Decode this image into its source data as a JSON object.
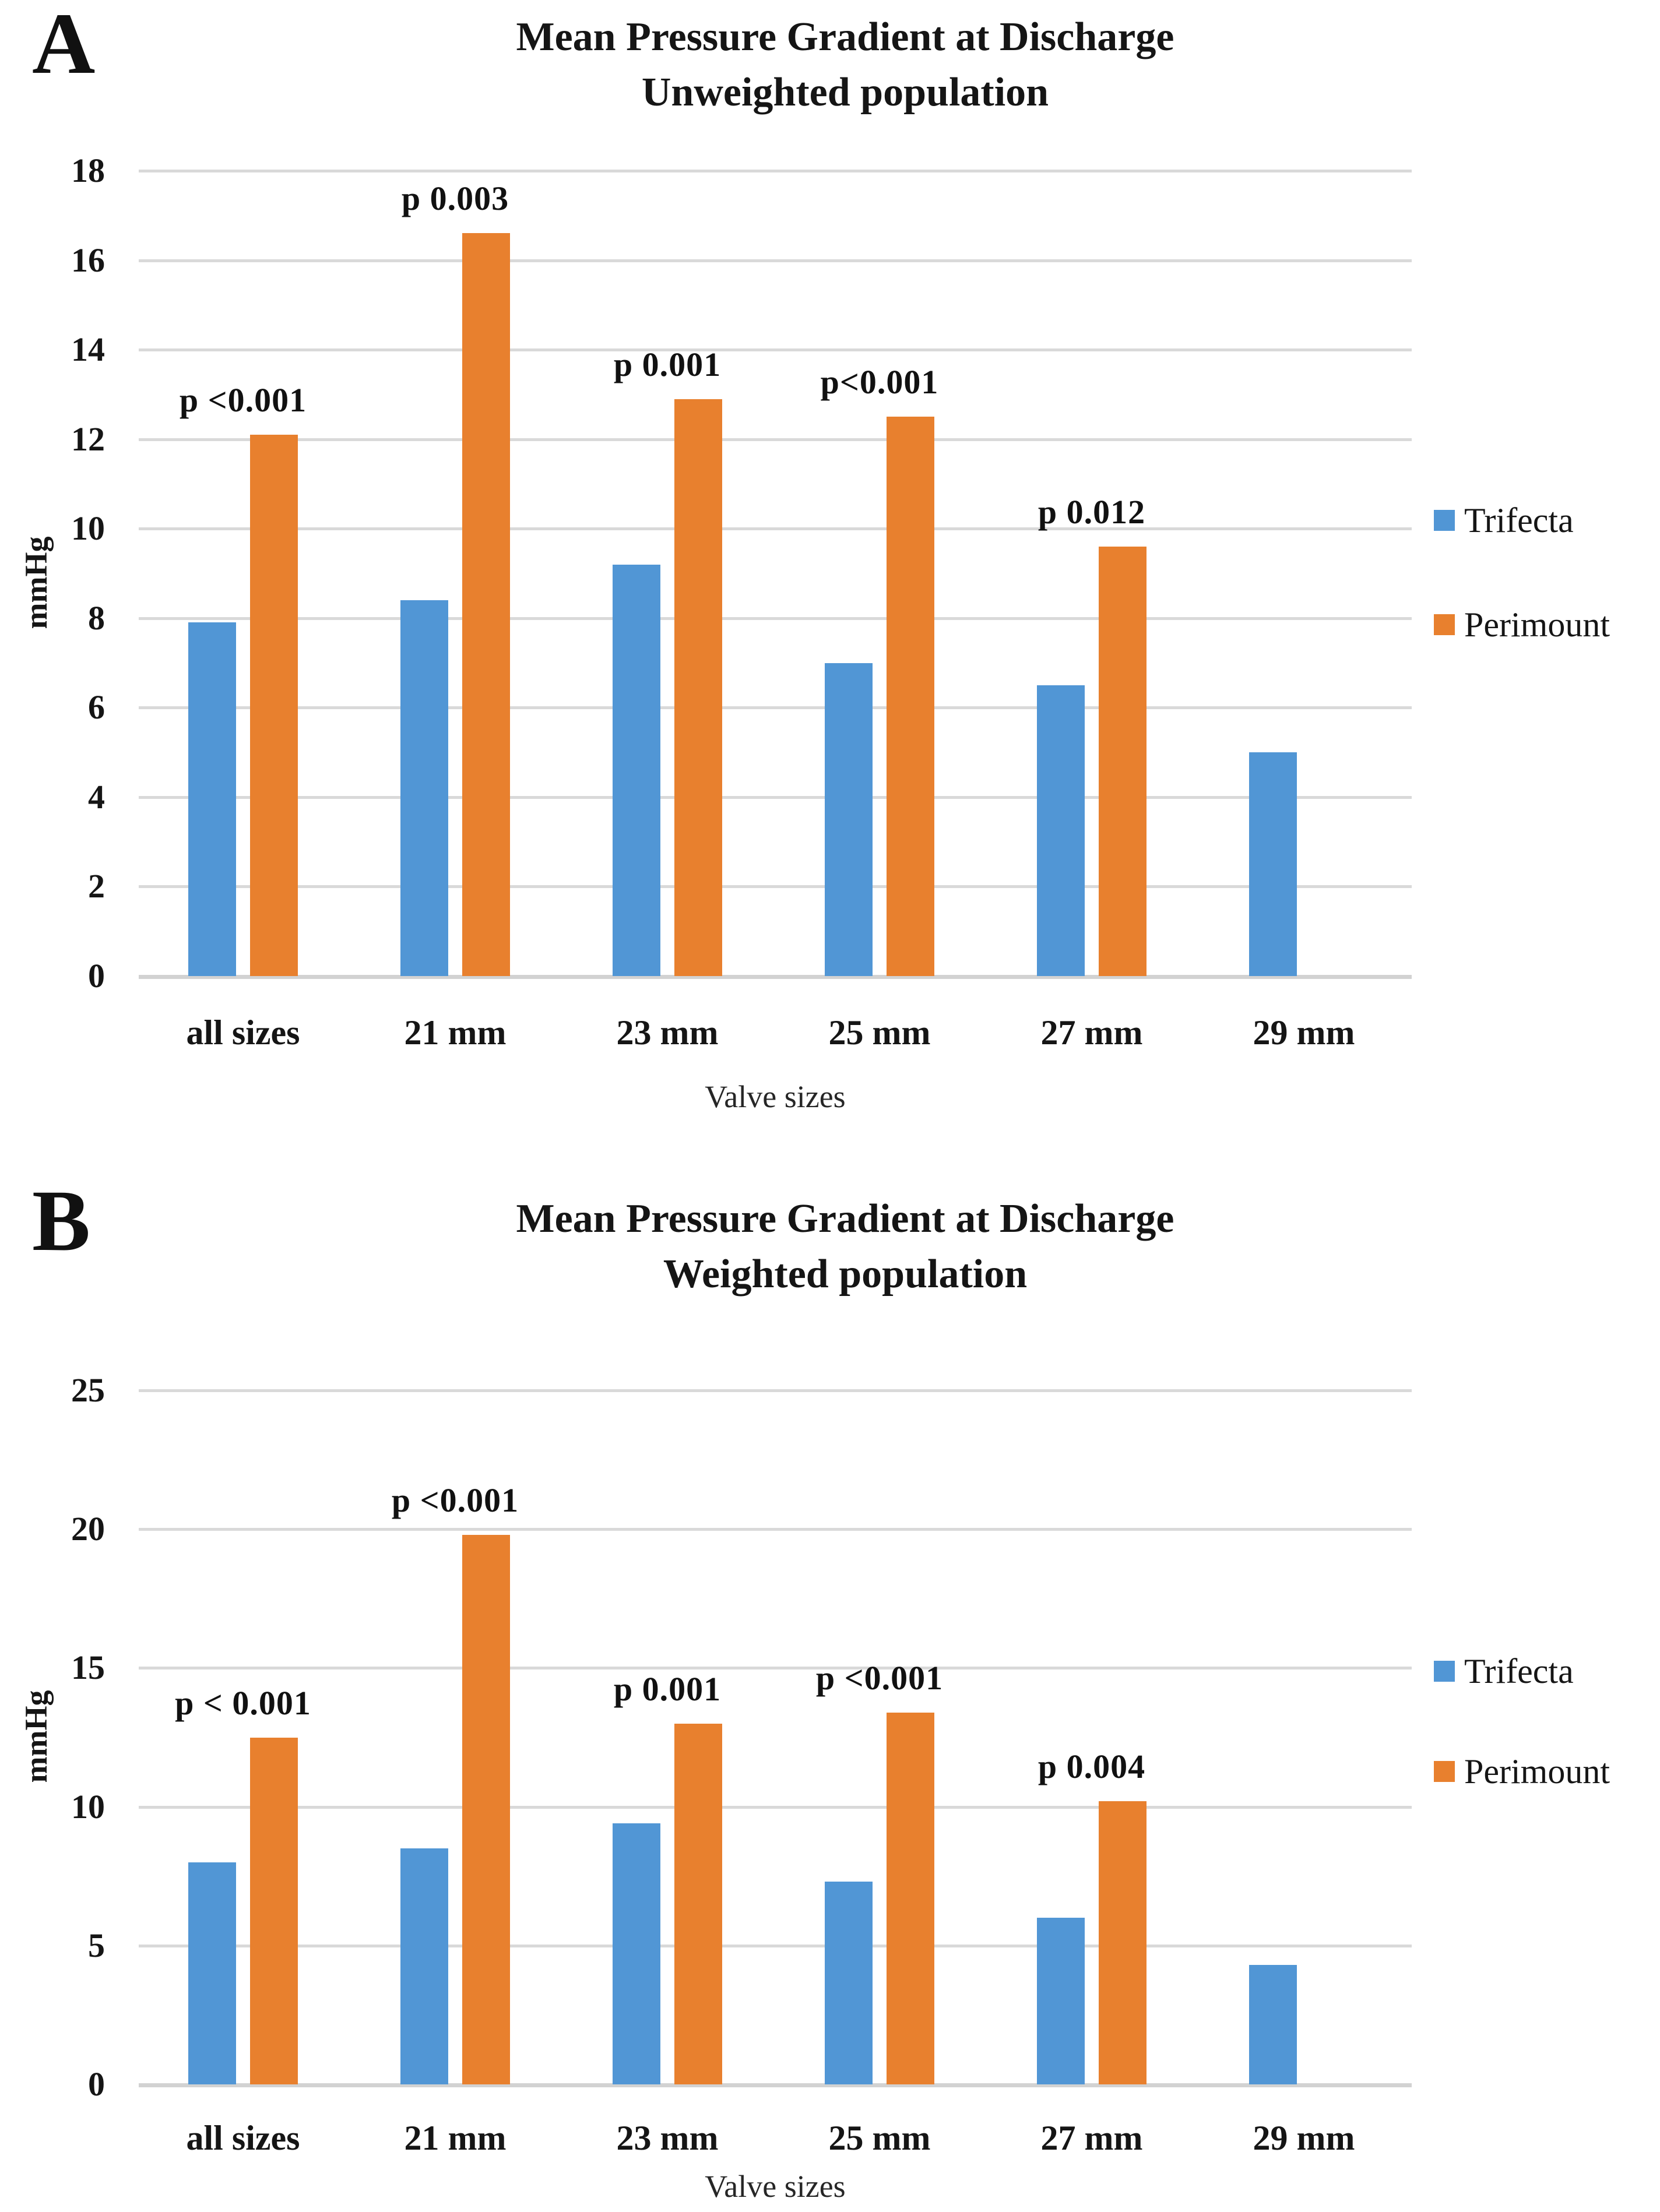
{
  "figure": {
    "background": "#ffffff"
  },
  "colors": {
    "trifecta_blue": "#5196d5",
    "perimount_orange": "#e8802e",
    "gridline": "#d9d9d9",
    "text": "#1c1c1c"
  },
  "chart_data": [
    {
      "type": "bar",
      "panel_label": "A",
      "title_line1": "Mean Pressure Gradient at Discharge",
      "title_line2": "Unweighted population",
      "ylabel": "mmHg",
      "xlabel": "Valve sizes",
      "ylim": [
        0,
        18
      ],
      "yticks": [
        0,
        2,
        4,
        6,
        8,
        10,
        12,
        14,
        16,
        18
      ],
      "grid": true,
      "legend_position": "right",
      "categories": [
        "all sizes",
        "21 mm",
        "23 mm",
        "25 mm",
        "27 mm",
        "29 mm"
      ],
      "series": [
        {
          "name": "Trifecta",
          "color_key": "trifecta_blue",
          "values": [
            7.9,
            8.4,
            9.2,
            7.0,
            6.5,
            5.0
          ]
        },
        {
          "name": "Perimount",
          "color_key": "perimount_orange",
          "values": [
            12.1,
            16.6,
            12.9,
            12.5,
            9.6,
            null
          ]
        }
      ],
      "p_labels": [
        "p <0.001",
        "p 0.003",
        "p 0.001",
        "p<0.001",
        "p 0.012",
        ""
      ]
    },
    {
      "type": "bar",
      "panel_label": "B",
      "title_line1": "Mean Pressure Gradient at Discharge",
      "title_line2": "Weighted population",
      "ylabel": "mmHg",
      "xlabel": "Valve sizes",
      "ylim": [
        0,
        25
      ],
      "yticks": [
        0,
        5,
        10,
        15,
        20,
        25
      ],
      "grid": true,
      "legend_position": "right",
      "categories": [
        "all sizes",
        "21 mm",
        "23 mm",
        "25 mm",
        "27 mm",
        "29 mm"
      ],
      "series": [
        {
          "name": "Trifecta",
          "color_key": "trifecta_blue",
          "values": [
            8.0,
            8.5,
            9.4,
            7.3,
            6.0,
            4.3
          ]
        },
        {
          "name": "Perimount",
          "color_key": "perimount_orange",
          "values": [
            12.5,
            19.8,
            13.0,
            13.4,
            10.2,
            null
          ]
        }
      ],
      "p_labels": [
        "p < 0.001",
        "p <0.001",
        "p 0.001",
        "p <0.001",
        "p 0.004",
        ""
      ]
    }
  ]
}
